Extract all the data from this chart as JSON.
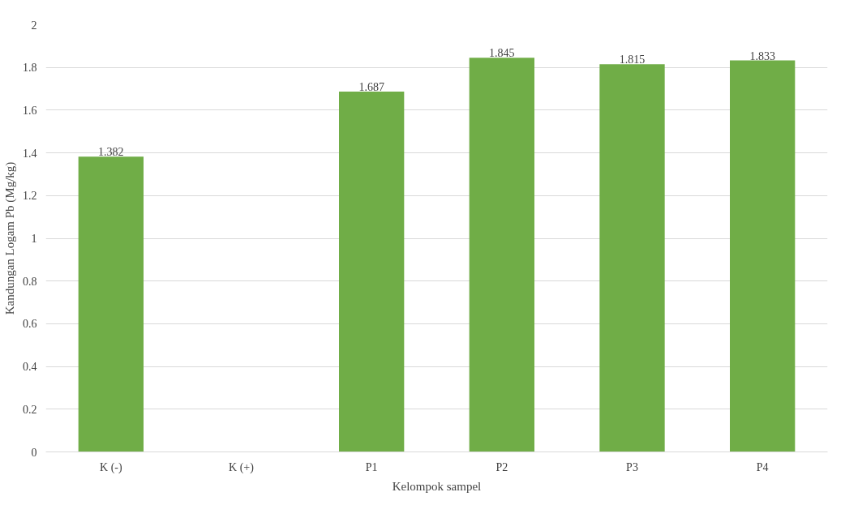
{
  "chart_data": {
    "type": "bar",
    "xlabel": "Kelompok sampel",
    "ylabel": "Kandungan Logam Pb (Mg/kg)",
    "categories": [
      "K (-)",
      "K (+)",
      "P1",
      "P2",
      "P3",
      "P4"
    ],
    "values": [
      1.382,
      null,
      1.687,
      1.845,
      1.815,
      1.833
    ],
    "color": "#70ad47",
    "ylim": [
      0,
      2
    ],
    "yticks": [
      0,
      0.2,
      0.4,
      0.6,
      0.8,
      1,
      1.2,
      1.4,
      1.6,
      1.8,
      2
    ],
    "grid": "y",
    "data_labels": true
  }
}
